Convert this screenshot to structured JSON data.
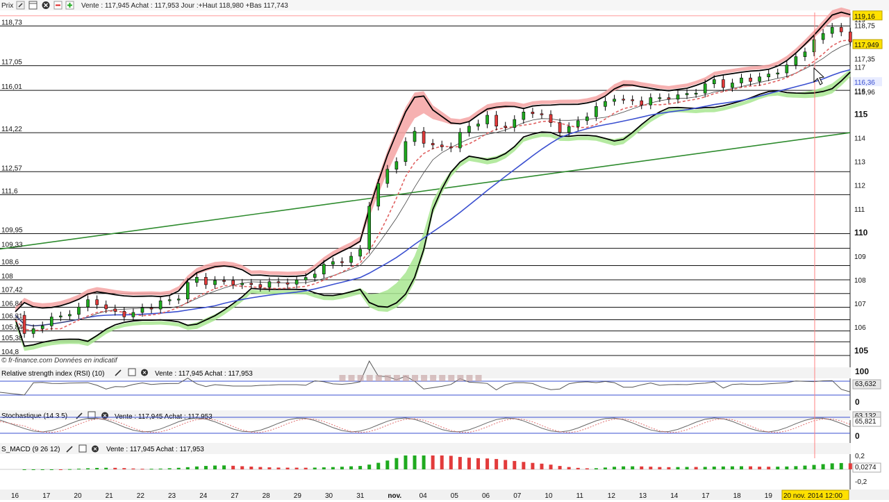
{
  "toolbar": {
    "title": "Prix",
    "quote_text": "Vente : 117,945 Achat : 117,953 Jour :+Haut 118,980 +Bas 117,743"
  },
  "watermark": "© fr-finance.com Données en indicatif",
  "indicators": {
    "rsi": {
      "label": "Relative strength index (RSI) (10)",
      "quote": "Vente : 117,945 Achat : 117,953",
      "scale": [
        "100",
        "0"
      ],
      "value_label": "63,632"
    },
    "stoch": {
      "label": "Stochastique (14 3 5)",
      "quote": "Vente : 117,945 Achat : 117,953",
      "value_label": "65,821",
      "value_label_top": "63,132",
      "scale": [
        "0"
      ]
    },
    "macd": {
      "label": "S_MACD (9 26 12)",
      "quote": "Vente : 117,945 Achat : 117,953",
      "scale": [
        "0,2",
        "-0,2"
      ],
      "value_label": "0,0274"
    }
  },
  "date_axis": {
    "ticks": [
      "16",
      "17",
      "20",
      "21",
      "22",
      "23",
      "24",
      "27",
      "28",
      "29",
      "30",
      "31",
      "nov.",
      "04",
      "05",
      "06",
      "07",
      "10",
      "11",
      "12",
      "13",
      "14",
      "17",
      "18",
      "19"
    ],
    "cursor_label": "20 nov. 2014 12:00"
  },
  "colors": {
    "bull": "#1faa1f",
    "bear": "#e23b3b",
    "bb_upper_fill": "#f4a3a3",
    "bb_lower_fill": "#a8e690",
    "trendline": "#2e8b2e",
    "ma_blue": "#3a4fd0",
    "ma_dashed": "#e06060",
    "highlight": "#ffe100"
  },
  "chart_data": {
    "type": "candlestick",
    "instrument_quote": {
      "bid": 117.945,
      "ask": 117.953,
      "day_high": 118.98,
      "day_low": 117.743
    },
    "y_ticks": [
      "119",
      "118",
      "117",
      "116",
      "115",
      "114",
      "113",
      "112",
      "111",
      "110",
      "109",
      "108",
      "107",
      "106",
      "105"
    ],
    "ylim": [
      104.8,
      119.3
    ],
    "horizontal_levels": [
      {
        "label": "118,73",
        "value": 118.73
      },
      {
        "label": "117,05",
        "value": 117.05
      },
      {
        "label": "116,01",
        "value": 116.01
      },
      {
        "label": "114,22",
        "value": 114.22
      },
      {
        "label": "112,57",
        "value": 112.57
      },
      {
        "label": "111,6",
        "value": 111.6
      },
      {
        "label": "109,95",
        "value": 109.95
      },
      {
        "label": "109,33",
        "value": 109.33
      },
      {
        "label": "108,6",
        "value": 108.6
      },
      {
        "label": "108",
        "value": 108.0
      },
      {
        "label": "107,42",
        "value": 107.42
      },
      {
        "label": "106,84",
        "value": 106.84
      },
      {
        "label": "106,31",
        "value": 106.31
      },
      {
        "label": "105,84",
        "value": 105.84
      },
      {
        "label": "105,38",
        "value": 105.38
      },
      {
        "label": "104,8",
        "value": 104.8
      }
    ],
    "right_labels": [
      {
        "label": "119,16",
        "value": 119.16,
        "highlight": true
      },
      {
        "label": "118,75",
        "value": 118.75
      },
      {
        "label": "117,949",
        "value": 117.949,
        "highlight": true
      },
      {
        "label": "117,35",
        "value": 117.35
      },
      {
        "label": "116,36",
        "value": 116.36,
        "blue": true
      },
      {
        "label": "115,96",
        "value": 115.96
      }
    ],
    "trendline": {
      "from": [
        "16",
        109.3
      ],
      "to": [
        "20 nov.",
        114.22
      ]
    },
    "price_path": [
      [
        0,
        106.5
      ],
      [
        0.3,
        105.7
      ],
      [
        0.9,
        106.2
      ],
      [
        1.5,
        106.5
      ],
      [
        2.1,
        106.9
      ],
      [
        2.5,
        107.2
      ],
      [
        2.8,
        106.8
      ],
      [
        3.1,
        106.7
      ],
      [
        3.6,
        106.5
      ],
      [
        4.0,
        106.8
      ],
      [
        4.4,
        106.9
      ],
      [
        4.8,
        107.1
      ],
      [
        5.2,
        107.3
      ],
      [
        5.6,
        108.1
      ],
      [
        6.0,
        107.9
      ],
      [
        6.5,
        108.0
      ],
      [
        7.0,
        107.9
      ],
      [
        7.5,
        107.8
      ],
      [
        8.0,
        107.8
      ],
      [
        8.5,
        107.9
      ],
      [
        9.0,
        108.0
      ],
      [
        9.3,
        108.0
      ],
      [
        9.7,
        108.6
      ],
      [
        10.2,
        108.8
      ],
      [
        10.6,
        108.9
      ],
      [
        11.0,
        109.3
      ],
      [
        11.3,
        111.4
      ],
      [
        11.5,
        111.8
      ],
      [
        11.8,
        112.6
      ],
      [
        12.1,
        113.0
      ],
      [
        12.4,
        113.8
      ],
      [
        12.7,
        114.2
      ],
      [
        13.1,
        113.8
      ],
      [
        13.5,
        113.6
      ],
      [
        13.9,
        113.7
      ],
      [
        14.2,
        114.3
      ],
      [
        14.6,
        114.6
      ],
      [
        15.0,
        114.9
      ],
      [
        15.4,
        114.4
      ],
      [
        15.8,
        114.7
      ],
      [
        16.2,
        115.0
      ],
      [
        16.6,
        115.2
      ],
      [
        17.0,
        114.7
      ],
      [
        17.4,
        114.3
      ],
      [
        17.8,
        114.6
      ],
      [
        18.2,
        115.0
      ],
      [
        18.6,
        115.3
      ],
      [
        19.0,
        115.8
      ],
      [
        19.4,
        115.6
      ],
      [
        19.8,
        115.4
      ],
      [
        20.2,
        115.7
      ],
      [
        20.6,
        115.7
      ],
      [
        21.0,
        115.8
      ],
      [
        21.5,
        115.9
      ],
      [
        22.0,
        116.2
      ],
      [
        22.3,
        116.5
      ],
      [
        22.6,
        116.2
      ],
      [
        23.0,
        116.4
      ],
      [
        23.4,
        116.5
      ],
      [
        23.8,
        116.6
      ],
      [
        24.2,
        116.8
      ],
      [
        24.6,
        117.1
      ],
      [
        25.0,
        117.6
      ],
      [
        25.4,
        118.0
      ],
      [
        25.8,
        118.5
      ],
      [
        26.1,
        118.9
      ],
      [
        26.4,
        118.3
      ],
      [
        26.6,
        117.95
      ]
    ]
  }
}
